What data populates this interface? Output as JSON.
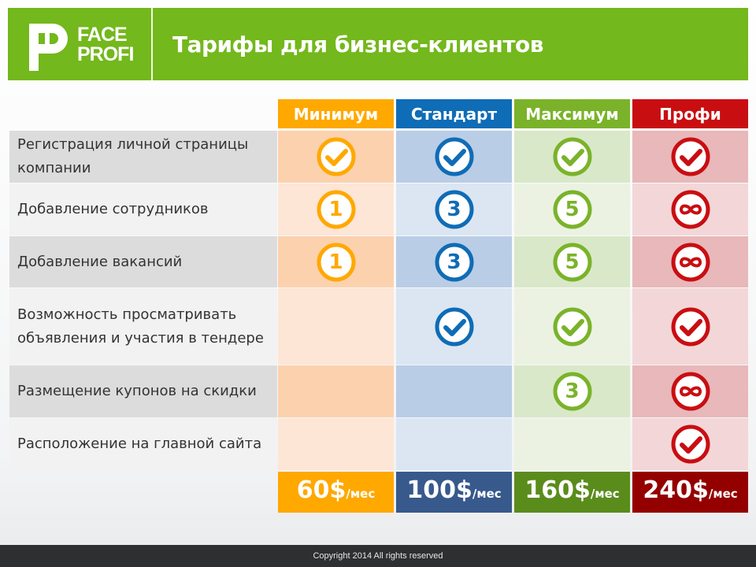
{
  "logo": {
    "line1": "FACE",
    "line2": "PROFI"
  },
  "title": "Тарифы для бизнес-клиентов",
  "colors": {
    "brand": "#73b81c",
    "plans": [
      "#ffa800",
      "#0f6cb6",
      "#7ab32a",
      "#c90e12"
    ],
    "price_bg": [
      "#ffa800",
      "#37598c",
      "#5a8c1c",
      "#940000"
    ],
    "cells_even": [
      "#fcd1ae",
      "#b9cde6",
      "#d9e8c8",
      "#e8b8ba"
    ],
    "cells_odd": [
      "#fde6d6",
      "#dbe6f2",
      "#ebf2e2",
      "#f3d7d8"
    ]
  },
  "plans": [
    {
      "name": "Минимум",
      "price": "60$",
      "unit": "/мес"
    },
    {
      "name": "Стандарт",
      "price": "100$",
      "unit": "/мес"
    },
    {
      "name": "Максимум",
      "price": "160$",
      "unit": "/мес"
    },
    {
      "name": "Профи",
      "price": "240$",
      "unit": "/мес"
    }
  ],
  "features": [
    {
      "label": "Регистрация личной страницы компании",
      "values": [
        "check",
        "check",
        "check",
        "check"
      ]
    },
    {
      "label": "Добавление сотрудников",
      "values": [
        "1",
        "3",
        "5",
        "infinity"
      ]
    },
    {
      "label": "Добавление вакансий",
      "values": [
        "1",
        "3",
        "5",
        "infinity"
      ]
    },
    {
      "label": "Возможность просматривать объявления и участия в тендере",
      "values": [
        "",
        "check",
        "check",
        "check"
      ]
    },
    {
      "label": "Размещение купонов на скидки",
      "values": [
        "",
        "",
        "3",
        "infinity"
      ]
    },
    {
      "label": "Расположение на главной сайта",
      "values": [
        "",
        "",
        "",
        "check"
      ]
    }
  ],
  "footer": "Copyright 2014 All rights reserved"
}
